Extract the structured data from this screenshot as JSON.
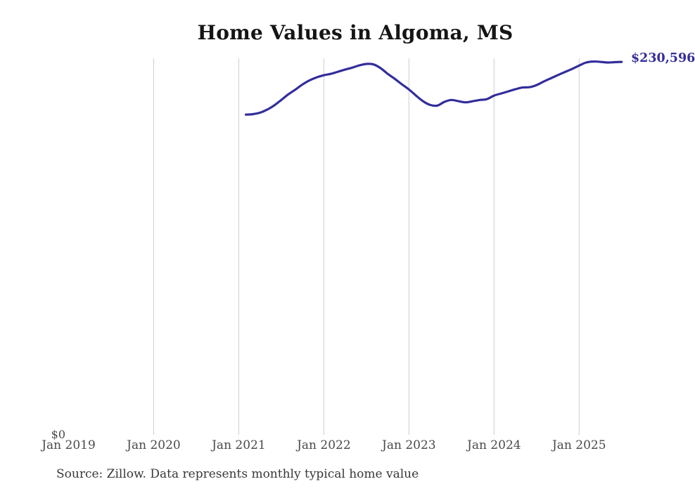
{
  "chart": {
    "title": "Home Values in Algoma, MS",
    "source_note": "Source: Zillow. Data represents monthly typical home value",
    "last_value_label": "$230,596",
    "y_axis": {
      "zero_label": "$0",
      "min": 0,
      "max": 232800
    },
    "colors": {
      "line": "#332D9B",
      "grid": "#CDCDCD",
      "title": "#151515",
      "axis_label": "#4A4A4A",
      "source_text": "#383838"
    }
  },
  "chart_data": {
    "type": "line",
    "title": "Home Values in Algoma, MS",
    "xlabel": "",
    "ylabel": "",
    "ylim": [
      0,
      232800
    ],
    "grid": "vertical-only",
    "legend": "none",
    "x_ticks": [
      {
        "label": "Jan 2019",
        "month": "2019-01",
        "gridline": false
      },
      {
        "label": "Jan 2020",
        "month": "2020-01",
        "gridline": true
      },
      {
        "label": "Jan 2021",
        "month": "2021-01",
        "gridline": true
      },
      {
        "label": "Jan 2022",
        "month": "2022-01",
        "gridline": true
      },
      {
        "label": "Jan 2023",
        "month": "2023-01",
        "gridline": true
      },
      {
        "label": "Jan 2024",
        "month": "2024-01",
        "gridline": true
      },
      {
        "label": "Jan 2025",
        "month": "2025-01",
        "gridline": true
      }
    ],
    "months": [
      "2021-02",
      "2021-03",
      "2021-04",
      "2021-05",
      "2021-06",
      "2021-07",
      "2021-08",
      "2021-09",
      "2021-10",
      "2021-11",
      "2021-12",
      "2022-01",
      "2022-02",
      "2022-03",
      "2022-04",
      "2022-05",
      "2022-06",
      "2022-07",
      "2022-08",
      "2022-09",
      "2022-10",
      "2022-11",
      "2022-12",
      "2023-01",
      "2023-02",
      "2023-03",
      "2023-04",
      "2023-05",
      "2023-06",
      "2023-07",
      "2023-08",
      "2023-09",
      "2023-10",
      "2023-11",
      "2023-12",
      "2024-01",
      "2024-02",
      "2024-03",
      "2024-04",
      "2024-05",
      "2024-06",
      "2024-07",
      "2024-08",
      "2024-09",
      "2024-10",
      "2024-11",
      "2024-12",
      "2025-01",
      "2025-02",
      "2025-03",
      "2025-04",
      "2025-05",
      "2025-06",
      "2025-07"
    ],
    "values": [
      197900,
      198200,
      199100,
      201000,
      203600,
      207000,
      210500,
      213500,
      216600,
      219200,
      221000,
      222300,
      223200,
      224500,
      225800,
      227000,
      228400,
      229300,
      229000,
      226700,
      223200,
      220100,
      216700,
      213500,
      209700,
      206200,
      203900,
      203500,
      205800,
      207000,
      206200,
      205500,
      206200,
      207000,
      207500,
      209700,
      211000,
      212300,
      213600,
      214700,
      214900,
      216200,
      218400,
      220400,
      222400,
      224300,
      226200,
      228300,
      230200,
      230800,
      230600,
      230200,
      230400,
      230596
    ],
    "annotations": [
      {
        "text": "$230,596",
        "position": "end-of-line"
      },
      {
        "text": "$0",
        "position": "y-axis-zero"
      }
    ]
  }
}
